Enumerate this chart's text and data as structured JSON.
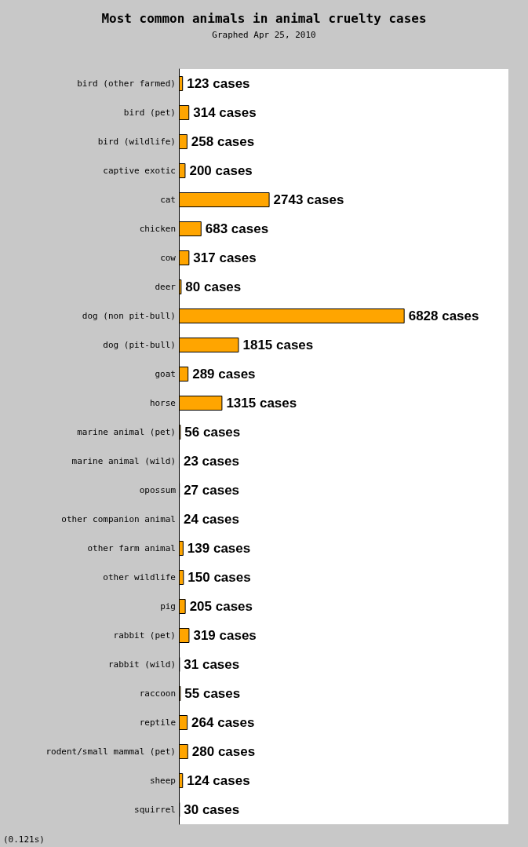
{
  "chart_data": {
    "type": "bar",
    "orientation": "horizontal",
    "title": "Most common animals in animal cruelty cases",
    "subtitle": "Graphed Apr 25, 2010",
    "categories": [
      "bird (other farmed)",
      "bird (pet)",
      "bird (wildlife)",
      "captive exotic",
      "cat",
      "chicken",
      "cow",
      "deer",
      "dog (non pit-bull)",
      "dog (pit-bull)",
      "goat",
      "horse",
      "marine animal (pet)",
      "marine animal (wild)",
      "opossum",
      "other companion animal",
      "other farm animal",
      "other wildlife",
      "pig",
      "rabbit (pet)",
      "rabbit (wild)",
      "raccoon",
      "reptile",
      "rodent/small mammal (pet)",
      "sheep",
      "squirrel"
    ],
    "values": [
      123,
      314,
      258,
      200,
      2743,
      683,
      317,
      80,
      6828,
      1815,
      289,
      1315,
      56,
      23,
      27,
      24,
      139,
      150,
      205,
      319,
      31,
      55,
      264,
      280,
      124,
      30
    ],
    "value_labels": [
      "123 cases",
      "314 cases",
      "258 cases",
      "200 cases",
      "2743 cases",
      "683 cases",
      "317 cases",
      "80 cases",
      "6828 cases",
      "1815 cases",
      "289 cases",
      "1315 cases",
      "56 cases",
      "23 cases",
      "27 cases",
      "24 cases",
      "139 cases",
      "150 cases",
      "205 cases",
      "319 cases",
      "31 cases",
      "55 cases",
      "264 cases",
      "280 cases",
      "124 cases",
      "30 cases"
    ],
    "color": "#ffa500",
    "annotations": [
      "(0.121s)"
    ]
  }
}
